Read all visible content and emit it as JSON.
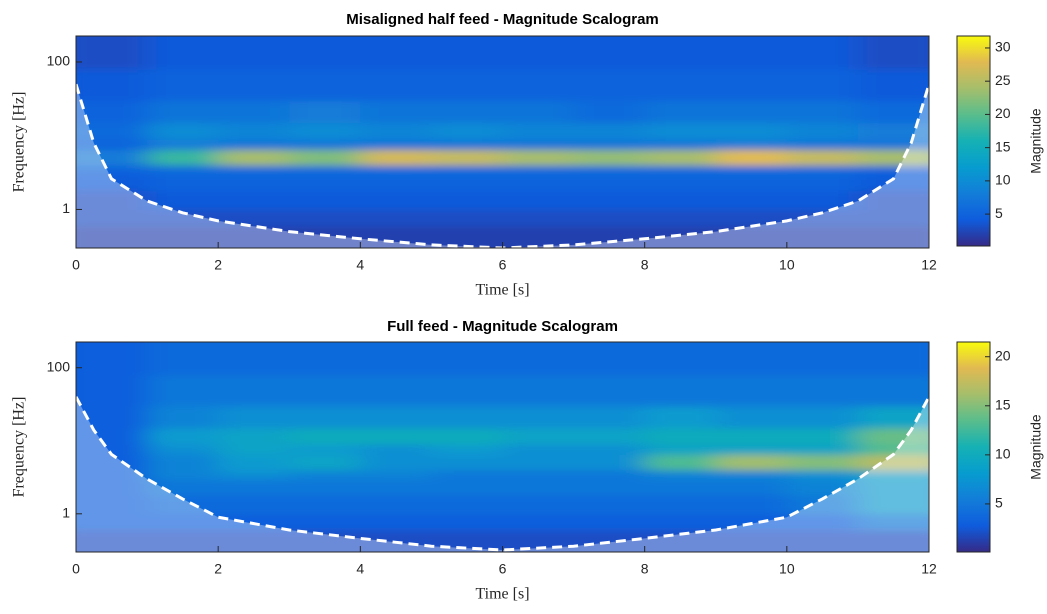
{
  "chart_data": [
    {
      "type": "heatmap",
      "title": "Misaligned half feed - Magnitude Scalogram",
      "x_label": "Time [s]",
      "y_label": "Frequency [Hz]",
      "colorbar_label": "Magnitude",
      "xlim": [
        0,
        12
      ],
      "xticks": [
        0,
        2,
        4,
        6,
        8,
        10,
        12
      ],
      "ylim": [
        0.3,
        225
      ],
      "yticks": [
        1,
        100
      ],
      "y_scale": "log",
      "zlim": [
        0.2,
        31.8
      ],
      "zticks": [
        5,
        10,
        15,
        20,
        25,
        30
      ],
      "colormap": "parula",
      "x": [
        0,
        1,
        2,
        3,
        4,
        5,
        6,
        7,
        8,
        9,
        10,
        11,
        12
      ],
      "y": [
        0.3,
        0.6,
        1,
        1.8,
        3,
        4,
        6.5,
        9,
        15,
        30,
        80,
        225
      ],
      "z": [
        [
          2,
          2,
          2,
          2,
          2,
          2,
          2,
          2,
          2,
          2,
          2,
          2
        ],
        [
          3,
          3,
          3,
          3,
          3,
          3,
          3,
          3,
          3,
          3,
          3,
          3
        ],
        [
          3,
          4,
          4,
          4,
          4,
          4,
          4,
          4,
          4,
          4,
          4,
          3
        ],
        [
          4,
          5,
          5,
          5,
          5,
          5,
          5,
          5,
          5,
          5,
          5,
          4
        ],
        [
          5,
          6,
          6,
          6,
          6,
          6,
          6,
          6,
          6,
          6,
          6,
          5
        ],
        [
          8,
          18,
          24,
          22,
          27,
          26,
          24,
          23,
          24,
          28,
          26,
          24
        ],
        [
          5,
          8,
          7,
          7,
          7,
          7,
          7,
          7,
          7,
          8,
          7,
          7
        ],
        [
          6,
          10,
          9,
          10,
          9,
          10,
          9,
          9,
          10,
          10,
          9,
          8
        ],
        [
          5,
          7,
          7,
          8,
          7,
          7,
          7,
          6,
          7,
          7,
          7,
          6
        ],
        [
          4,
          5,
          5,
          5,
          5,
          5,
          5,
          5,
          5,
          5,
          5,
          4
        ],
        [
          3,
          4,
          4,
          4,
          4,
          4,
          4,
          4,
          4,
          4,
          4,
          3
        ]
      ],
      "coi": {
        "x": [
          0,
          0.25,
          0.5,
          1,
          1.5,
          2,
          3,
          4,
          5,
          6,
          7,
          8,
          9,
          10,
          10.5,
          11,
          11.5,
          11.75,
          12
        ],
        "y": [
          50,
          8,
          2.6,
          1.3,
          0.9,
          0.7,
          0.5,
          0.4,
          0.33,
          0.3,
          0.33,
          0.4,
          0.5,
          0.7,
          0.9,
          1.3,
          2.6,
          8,
          50
        ]
      }
    },
    {
      "type": "heatmap",
      "title": "Full feed - Magnitude Scalogram",
      "x_label": "Time [s]",
      "y_label": "Frequency [Hz]",
      "colorbar_label": "Magnitude",
      "xlim": [
        0,
        12
      ],
      "xticks": [
        0,
        2,
        4,
        6,
        8,
        10,
        12
      ],
      "ylim": [
        0.3,
        225
      ],
      "yticks": [
        1,
        100
      ],
      "y_scale": "log",
      "zlim": [
        0.1,
        21.5
      ],
      "zticks": [
        5,
        10,
        15,
        20
      ],
      "colormap": "parula",
      "x": [
        0,
        1,
        2,
        3,
        4,
        5,
        6,
        7,
        8,
        9,
        10,
        11,
        12
      ],
      "y": [
        0.3,
        0.6,
        1,
        1.8,
        3,
        4,
        6.5,
        9,
        15,
        30,
        80,
        225
      ],
      "z": [
        [
          2,
          2,
          2,
          2,
          2,
          2,
          2,
          2,
          2,
          2,
          2,
          2
        ],
        [
          3,
          3,
          3,
          3,
          3,
          3,
          3,
          3,
          3,
          3,
          3,
          5
        ],
        [
          3,
          4,
          4,
          4,
          4,
          4,
          4,
          4,
          4,
          4,
          5,
          8
        ],
        [
          3,
          5,
          5,
          5,
          5,
          5,
          5,
          5,
          5,
          5,
          6,
          8
        ],
        [
          3,
          6,
          7,
          6,
          6,
          5,
          5,
          5,
          6,
          6,
          7,
          9
        ],
        [
          3,
          6,
          8,
          9,
          7,
          7,
          7,
          7,
          13,
          16,
          15,
          17
        ],
        [
          3,
          7,
          9,
          8,
          7,
          8,
          7,
          7,
          9,
          9,
          9,
          13
        ],
        [
          3,
          8,
          9,
          10,
          10,
          10,
          9,
          9,
          10,
          10,
          10,
          14
        ],
        [
          3,
          6,
          7,
          7,
          7,
          7,
          7,
          7,
          8,
          7,
          7,
          9
        ],
        [
          3,
          5,
          5,
          5,
          5,
          5,
          5,
          5,
          5,
          5,
          5,
          5
        ],
        [
          3,
          4,
          4,
          4,
          4,
          4,
          4,
          4,
          4,
          4,
          4,
          4
        ]
      ],
      "coi": {
        "x": [
          0,
          0.25,
          0.5,
          1,
          1.5,
          2,
          3,
          4,
          5,
          6,
          7,
          8,
          9,
          10,
          10.5,
          11,
          11.5,
          11.75,
          12
        ],
        "y": [
          40,
          14,
          6.5,
          3,
          1.6,
          0.9,
          0.6,
          0.46,
          0.36,
          0.32,
          0.36,
          0.46,
          0.6,
          0.9,
          1.6,
          3,
          6.5,
          14,
          40
        ]
      }
    }
  ]
}
